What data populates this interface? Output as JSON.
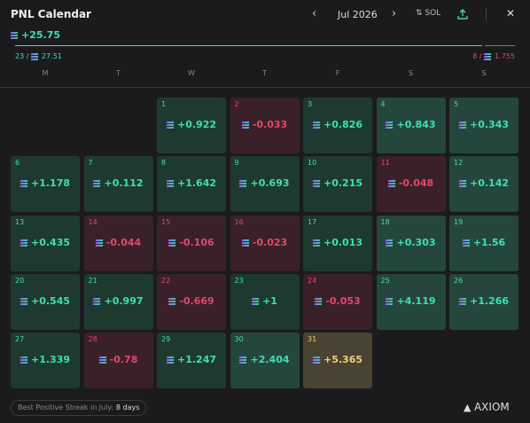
{
  "header": {
    "title": "PNL Calendar",
    "month": "Jul 2026",
    "currency": "SOL"
  },
  "summary": {
    "total": "+25.75",
    "positive_days": "23 /",
    "positive_amount": "27.51",
    "negative_days": "8 /",
    "negative_amount": "1.755"
  },
  "weekdays": [
    "M",
    "T",
    "W",
    "T",
    "F",
    "S",
    "S"
  ],
  "days": [
    {
      "day": 1,
      "pnl": "+0.922"
    },
    {
      "day": 2,
      "pnl": "-0.033"
    },
    {
      "day": 3,
      "pnl": "+0.826"
    },
    {
      "day": 4,
      "pnl": "+0.843"
    },
    {
      "day": 5,
      "pnl": "+0.343"
    },
    {
      "day": 6,
      "pnl": "+1.178"
    },
    {
      "day": 7,
      "pnl": "+0.112"
    },
    {
      "day": 8,
      "pnl": "+1.642"
    },
    {
      "day": 9,
      "pnl": "+0.693"
    },
    {
      "day": 10,
      "pnl": "+0.215"
    },
    {
      "day": 11,
      "pnl": "-0.048"
    },
    {
      "day": 12,
      "pnl": "+0.142"
    },
    {
      "day": 13,
      "pnl": "+0.435"
    },
    {
      "day": 14,
      "pnl": "-0.044"
    },
    {
      "day": 15,
      "pnl": "-0.106"
    },
    {
      "day": 16,
      "pnl": "-0.023"
    },
    {
      "day": 17,
      "pnl": "+0.013"
    },
    {
      "day": 18,
      "pnl": "+0.303"
    },
    {
      "day": 19,
      "pnl": "+1.56"
    },
    {
      "day": 20,
      "pnl": "+0.545"
    },
    {
      "day": 21,
      "pnl": "+0.997"
    },
    {
      "day": 22,
      "pnl": "-0.669"
    },
    {
      "day": 23,
      "pnl": "+1"
    },
    {
      "day": 24,
      "pnl": "-0.053"
    },
    {
      "day": 25,
      "pnl": "+4.119"
    },
    {
      "day": 26,
      "pnl": "+1.266"
    },
    {
      "day": 27,
      "pnl": "+1.339"
    },
    {
      "day": 28,
      "pnl": "-0.78"
    },
    {
      "day": 29,
      "pnl": "+1.247"
    },
    {
      "day": 30,
      "pnl": "+2.404"
    },
    {
      "day": 31,
      "pnl": "+5.365"
    }
  ],
  "footer": {
    "streak_label": "Best Positive Streak in July:",
    "streak_value": "8 days",
    "brand": "AXIOM"
  }
}
